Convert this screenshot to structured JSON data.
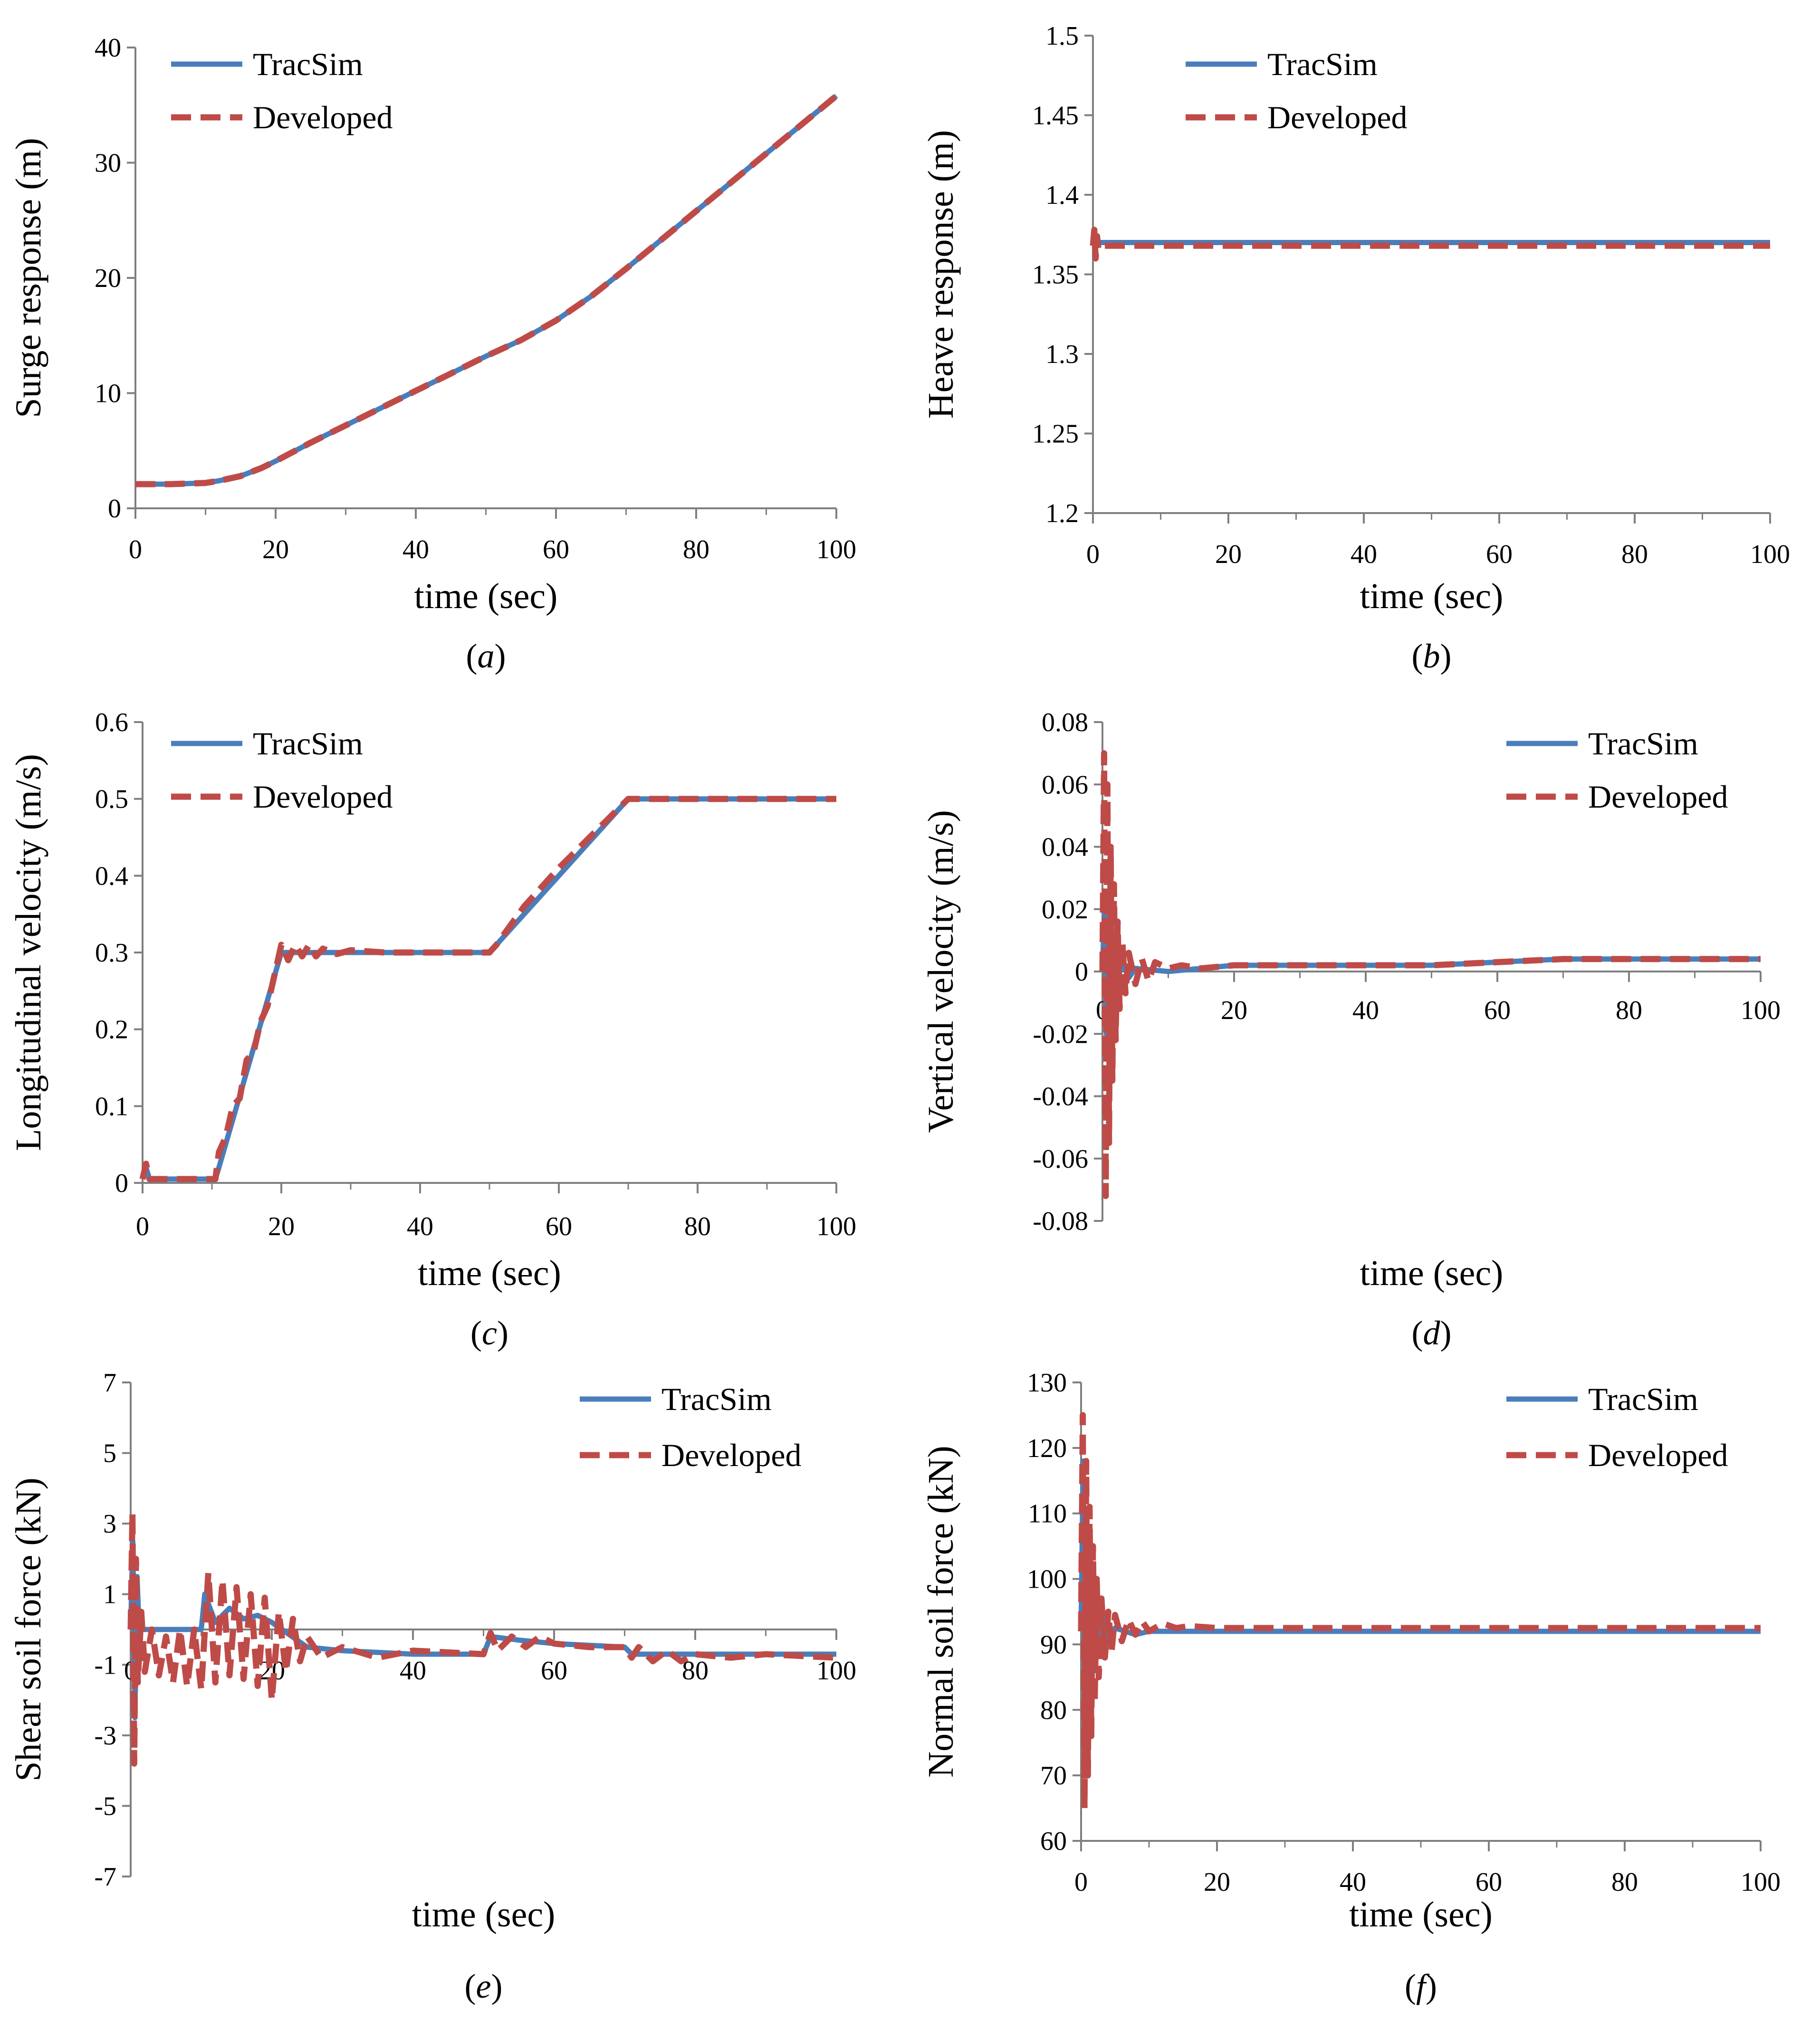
{
  "figure": {
    "legend_labels": [
      "TracSim",
      "Developed"
    ],
    "colors": {
      "tracsim": "#4a7ebb",
      "developed": "#be4b48"
    }
  },
  "chart_data": [
    {
      "id": "a",
      "type": "line",
      "caption": "(a)",
      "caption_letter": "a",
      "xlabel": "time (sec)",
      "ylabel": "Surge response (m)",
      "xlim": [
        0,
        100
      ],
      "ylim": [
        0,
        40
      ],
      "xticks": [
        0,
        20,
        40,
        60,
        80,
        100
      ],
      "yticks": [
        0,
        10,
        20,
        30,
        40
      ],
      "xtick_labels": [
        "0",
        "20",
        "40",
        "60",
        "80",
        "100"
      ],
      "ytick_labels": [
        "0",
        "10",
        "20",
        "30",
        "40"
      ],
      "legend": "top-left",
      "series": [
        {
          "name": "TracSim",
          "x": [
            0,
            5,
            10,
            12,
            15,
            18,
            20,
            25,
            30,
            35,
            40,
            45,
            50,
            55,
            60,
            65,
            70,
            75,
            80,
            85,
            90,
            95,
            100
          ],
          "y": [
            2.1,
            2.1,
            2.2,
            2.4,
            2.8,
            3.5,
            4.1,
            5.7,
            7.2,
            8.7,
            10.2,
            11.7,
            13.2,
            14.6,
            16.3,
            18.4,
            20.8,
            23.3,
            25.8,
            28.3,
            30.8,
            33.3,
            35.8
          ]
        },
        {
          "name": "Developed",
          "x": [
            0,
            5,
            10,
            12,
            15,
            18,
            20,
            25,
            30,
            35,
            40,
            45,
            50,
            55,
            60,
            65,
            70,
            75,
            80,
            85,
            90,
            95,
            100
          ],
          "y": [
            2.1,
            2.1,
            2.2,
            2.4,
            2.8,
            3.5,
            4.1,
            5.7,
            7.2,
            8.7,
            10.2,
            11.7,
            13.2,
            14.6,
            16.3,
            18.4,
            20.8,
            23.3,
            25.8,
            28.3,
            30.8,
            33.3,
            35.8
          ]
        }
      ]
    },
    {
      "id": "b",
      "type": "line",
      "caption": "(b)",
      "caption_letter": "b",
      "xlabel": "time (sec)",
      "ylabel": "Heave response (m)",
      "xlim": [
        0,
        100
      ],
      "ylim": [
        1.2,
        1.5
      ],
      "xticks": [
        0,
        20,
        40,
        60,
        80,
        100
      ],
      "yticks": [
        1.2,
        1.25,
        1.3,
        1.35,
        1.4,
        1.45,
        1.5
      ],
      "xtick_labels": [
        "0",
        "20",
        "40",
        "60",
        "80",
        "100"
      ],
      "ytick_labels": [
        "1.2",
        "1.25",
        "1.3",
        "1.35",
        "1.4",
        "1.45",
        "1.5"
      ],
      "legend": "top-left",
      "series": [
        {
          "name": "TracSim",
          "x": [
            0,
            100
          ],
          "y": [
            1.37,
            1.37
          ]
        },
        {
          "name": "Developed",
          "x": [
            0,
            0.2,
            0.4,
            0.6,
            0.8,
            1,
            100
          ],
          "y": [
            1.368,
            1.378,
            1.36,
            1.374,
            1.366,
            1.368,
            1.368
          ]
        }
      ]
    },
    {
      "id": "c",
      "type": "line",
      "caption": "(c)",
      "caption_letter": "c",
      "xlabel": "time (sec)",
      "ylabel": "Longitudinal velocity (m/s)",
      "xlim": [
        0,
        100
      ],
      "ylim": [
        0,
        0.6
      ],
      "xticks": [
        0,
        20,
        40,
        60,
        80,
        100
      ],
      "yticks": [
        0,
        0.1,
        0.2,
        0.3,
        0.4,
        0.5,
        0.6
      ],
      "xtick_labels": [
        "0",
        "20",
        "40",
        "60",
        "80",
        "100"
      ],
      "ytick_labels": [
        "0",
        "0.1",
        "0.2",
        "0.3",
        "0.4",
        "0.5",
        "0.6"
      ],
      "legend": "top-left",
      "series": [
        {
          "name": "TracSim",
          "x": [
            0,
            0.5,
            1,
            2,
            10.5,
            11,
            20,
            50,
            51,
            70,
            100
          ],
          "y": [
            0.005,
            0.02,
            0.005,
            0.005,
            0.005,
            0.02,
            0.3,
            0.3,
            0.31,
            0.5,
            0.5
          ]
        },
        {
          "name": "Developed",
          "x": [
            0,
            0.5,
            1,
            2,
            10.5,
            11,
            12,
            13,
            14,
            15,
            16,
            17,
            18,
            19,
            20,
            21,
            22,
            23,
            24,
            25,
            26,
            28,
            30,
            35,
            40,
            50,
            51,
            55,
            60,
            65,
            70,
            71,
            100
          ],
          "y": [
            0.005,
            0.025,
            0.005,
            0.005,
            0.005,
            0.04,
            0.06,
            0.1,
            0.11,
            0.16,
            0.17,
            0.21,
            0.23,
            0.27,
            0.31,
            0.29,
            0.31,
            0.295,
            0.31,
            0.295,
            0.305,
            0.298,
            0.303,
            0.3,
            0.3,
            0.3,
            0.31,
            0.36,
            0.41,
            0.455,
            0.5,
            0.5,
            0.5
          ]
        }
      ]
    },
    {
      "id": "d",
      "type": "line",
      "caption": "(d)",
      "caption_letter": "d",
      "xlabel": "time (sec)",
      "ylabel": "Vertical velocity (m/s)",
      "xlim": [
        0,
        100
      ],
      "ylim": [
        -0.08,
        0.08
      ],
      "xticks": [
        0,
        20,
        40,
        60,
        80,
        100
      ],
      "yticks": [
        -0.08,
        -0.06,
        -0.04,
        -0.02,
        0,
        0.02,
        0.04,
        0.06,
        0.08
      ],
      "xtick_labels": [
        "0",
        "20",
        "40",
        "60",
        "80",
        "100"
      ],
      "ytick_labels": [
        "-0.08",
        "-0.06",
        "-0.04",
        "-0.02",
        "0",
        "0.02",
        "0.04",
        "0.06",
        "0.08"
      ],
      "legend": "top-right",
      "series": [
        {
          "name": "TracSim",
          "x": [
            0,
            0.3,
            0.6,
            0.9,
            1.2,
            1.6,
            2,
            3,
            4,
            5,
            10,
            20,
            40,
            50,
            60,
            70,
            80,
            100
          ],
          "y": [
            0,
            0.02,
            -0.02,
            0.015,
            -0.012,
            0.008,
            -0.005,
            0.003,
            -0.002,
            0.001,
            0,
            0.002,
            0.002,
            0.002,
            0.003,
            0.004,
            0.004,
            0.004
          ]
        },
        {
          "name": "Developed",
          "x": [
            0,
            0.25,
            0.5,
            0.75,
            1,
            1.25,
            1.5,
            1.75,
            2,
            2.3,
            2.6,
            3,
            3.5,
            4,
            5,
            6,
            7,
            8,
            10,
            12,
            15,
            20,
            30,
            40,
            50,
            60,
            70,
            80,
            90,
            100
          ],
          "y": [
            0,
            0.07,
            -0.072,
            0.06,
            -0.055,
            0.04,
            -0.035,
            0.028,
            -0.022,
            0.016,
            -0.012,
            0.01,
            -0.007,
            0.006,
            -0.004,
            0.004,
            -0.003,
            0.003,
            0.001,
            0.002,
            0.001,
            0.002,
            0.002,
            0.002,
            0.002,
            0.003,
            0.004,
            0.004,
            0.004,
            0.004
          ]
        }
      ]
    },
    {
      "id": "e",
      "type": "line",
      "caption": "(e)",
      "caption_letter": "e",
      "xlabel": "time (sec)",
      "ylabel": "Shear soil force (kN)",
      "xlim": [
        0,
        100
      ],
      "ylim": [
        -7,
        7
      ],
      "xticks": [
        0,
        20,
        40,
        60,
        80,
        100
      ],
      "yticks": [
        -7,
        -5,
        -3,
        -1,
        1,
        3,
        5,
        7
      ],
      "xtick_labels": [
        "0",
        "20",
        "40",
        "60",
        "80",
        "100"
      ],
      "ytick_labels": [
        "-7",
        "-5",
        "-3",
        "-1",
        "1",
        "3",
        "5",
        "7"
      ],
      "legend": "top-right",
      "series": [
        {
          "name": "TracSim",
          "x": [
            0,
            0.3,
            0.6,
            0.9,
            1.2,
            2,
            10,
            10.5,
            12,
            14,
            16,
            18,
            20,
            25,
            30,
            40,
            50,
            51,
            55,
            60,
            70,
            71,
            80,
            90,
            100
          ],
          "y": [
            0,
            2.5,
            -2.5,
            1.5,
            0,
            0,
            0,
            1,
            0.2,
            0.6,
            0.3,
            0.4,
            0.2,
            -0.5,
            -0.6,
            -0.7,
            -0.7,
            -0.2,
            -0.3,
            -0.4,
            -0.5,
            -0.7,
            -0.7,
            -0.7,
            -0.7
          ]
        },
        {
          "name": "Developed",
          "x": [
            0,
            0.25,
            0.5,
            0.75,
            1,
            1.5,
            2,
            3,
            4,
            5,
            6,
            7,
            8,
            9,
            10,
            11,
            12,
            13,
            14,
            15,
            16,
            17,
            18,
            19,
            20,
            21,
            22,
            23,
            24,
            25,
            27,
            30,
            35,
            40,
            50,
            51,
            52,
            54,
            56,
            58,
            60,
            65,
            70,
            71,
            72,
            74,
            76,
            78,
            80,
            85,
            90,
            100
          ],
          "y": [
            0,
            3.3,
            -3.8,
            2,
            -1.5,
            0.5,
            -1.2,
            0,
            -1.3,
            -0.2,
            -1.5,
            0,
            -1.6,
            0,
            -1.7,
            1.6,
            -1.5,
            1.4,
            -1.3,
            1.2,
            -1.4,
            1,
            -1.6,
            0.9,
            -2,
            0.5,
            -1.2,
            0.3,
            -0.9,
            -0.2,
            -0.8,
            -0.5,
            -0.8,
            -0.6,
            -0.7,
            -0.1,
            -0.6,
            -0.2,
            -0.5,
            -0.2,
            -0.4,
            -0.5,
            -0.5,
            -0.8,
            -0.5,
            -0.9,
            -0.6,
            -0.9,
            -0.7,
            -0.8,
            -0.7,
            -0.8
          ]
        }
      ]
    },
    {
      "id": "f",
      "type": "line",
      "caption": "(f)",
      "caption_letter": "f",
      "xlabel": "time (sec)",
      "ylabel": "Normal soil force (kN)",
      "xlim": [
        0,
        100
      ],
      "ylim": [
        60,
        130
      ],
      "xticks": [
        0,
        20,
        40,
        60,
        80,
        100
      ],
      "yticks": [
        60,
        70,
        80,
        90,
        100,
        110,
        120,
        130
      ],
      "xtick_labels": [
        "0",
        "20",
        "40",
        "60",
        "80",
        "100"
      ],
      "ytick_labels": [
        "60",
        "70",
        "80",
        "90",
        "100",
        "110",
        "120",
        "130"
      ],
      "legend": "top-right",
      "series": [
        {
          "name": "TracSim",
          "x": [
            0,
            0.3,
            0.6,
            0.9,
            1.2,
            1.6,
            2,
            3,
            4,
            5,
            8,
            10,
            15,
            20,
            100
          ],
          "y": [
            92,
            118,
            72,
            108,
            80,
            100,
            86,
            95,
            90,
            92.5,
            91.5,
            92,
            92,
            92,
            92
          ]
        },
        {
          "name": "Developed",
          "x": [
            0,
            0.25,
            0.5,
            0.75,
            1,
            1.25,
            1.5,
            1.75,
            2,
            2.3,
            2.6,
            3,
            3.5,
            4,
            4.5,
            5,
            6,
            7,
            8,
            9,
            10,
            12,
            14,
            16,
            20,
            100
          ],
          "y": [
            92,
            125,
            65,
            118,
            70,
            111,
            76,
            105,
            81,
            100,
            85,
            97,
            88,
            95,
            89,
            94.5,
            90.5,
            93.8,
            91.5,
            93.5,
            92,
            93.2,
            92.5,
            92.8,
            92.5,
            92.5
          ]
        }
      ]
    }
  ]
}
